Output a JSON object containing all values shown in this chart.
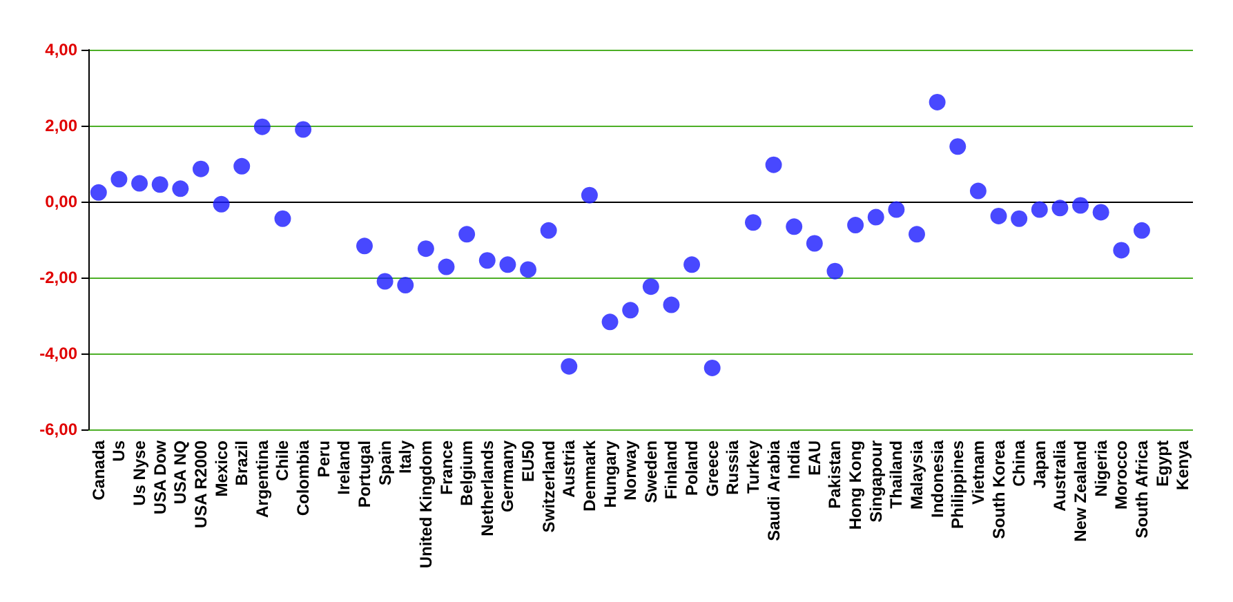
{
  "chart_data": {
    "type": "scatter",
    "categories": [
      "Canada",
      "Us",
      "Us Nyse",
      "USA Dow",
      "USA NQ",
      "USA R2000",
      "Mexico",
      "Brazil",
      "Argentina",
      "Chile",
      "Colombia",
      "Peru",
      "Ireland",
      "Portugal",
      "Spain",
      "Italy",
      "United Kingdom",
      "France",
      "Belgium",
      "Netherlands",
      "Germany",
      "EU50",
      "Switzerland",
      "Austria",
      "Denmark",
      "Hungary",
      "Norway",
      "Sweden",
      "Finland",
      "Poland",
      "Greece",
      "Russia",
      "Turkey",
      "Saudi Arabia",
      "India",
      "EAU",
      "Pakistan",
      "Hong Kong",
      "Singapour",
      "Thailand",
      "Malaysia",
      "Indonesia",
      "Philippines",
      "Vietnam",
      "South Korea",
      "China",
      "Japan",
      "Australia",
      "New Zealand",
      "Nigeria",
      "Morocco",
      "South Africa",
      "Egypt",
      "Kenya"
    ],
    "series": [
      {
        "color": "#1a1aff",
        "values": [
          0.24,
          0.59,
          0.48,
          0.45,
          0.34,
          0.86,
          -0.07,
          0.93,
          1.97,
          -0.45,
          1.9,
          null,
          null,
          -1.17,
          -2.1,
          -2.2,
          -1.24,
          -1.72,
          -0.86,
          -1.55,
          -1.66,
          -1.79,
          -0.76,
          -4.34,
          0.17,
          -3.17,
          -2.86,
          -2.24,
          -2.72,
          -1.66,
          -4.38,
          null,
          -0.55,
          0.97,
          -0.66,
          -1.1,
          -1.83,
          -0.62,
          -0.41,
          -0.21,
          -0.86,
          2.62,
          1.45,
          0.28,
          -0.38,
          -0.45,
          -0.21,
          -0.17,
          -0.1,
          -0.28,
          -1.28,
          -0.76,
          null,
          null
        ]
      }
    ],
    "ylim": [
      -6,
      4
    ],
    "yticks": [
      {
        "value": -6,
        "label": "-6,00"
      },
      {
        "value": -4,
        "label": "-4,00"
      },
      {
        "value": -2,
        "label": "-2,00"
      },
      {
        "value": 0,
        "label": "0,00"
      },
      {
        "value": 2,
        "label": "2,00"
      },
      {
        "value": 4,
        "label": "4,00"
      }
    ],
    "grid": "y",
    "marker": "circle"
  }
}
